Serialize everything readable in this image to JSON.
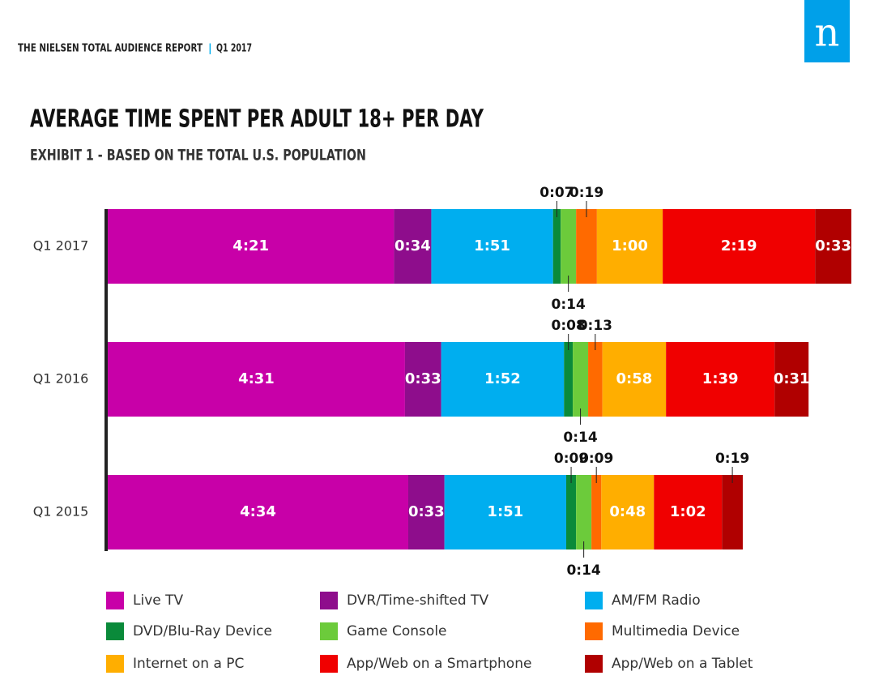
{
  "header": {
    "report": "THE NIELSEN TOTAL AUDIENCE REPORT",
    "period": "Q1 2017",
    "logo": "n"
  },
  "chart_data": {
    "type": "stacked-bar",
    "orientation": "horizontal",
    "title": "AVERAGE TIME SPENT PER ADULT 18+ PER DAY",
    "subtitle": "EXHIBIT 1 - BASED ON THE TOTAL U.S. POPULATION",
    "categories": [
      "Q1 2017",
      "Q1 2016",
      "Q1 2015"
    ],
    "series": [
      {
        "name": "Live TV",
        "color": "#c800a8",
        "values": [
          261,
          271,
          274
        ],
        "value_labels": [
          "4:21",
          "4:31",
          "4:34"
        ]
      },
      {
        "name": "DVR/Time-shifted TV",
        "color": "#8e0d8c",
        "values": [
          34,
          33,
          33
        ],
        "value_labels": [
          "0:34",
          "0:33",
          "0:33"
        ]
      },
      {
        "name": "AM/FM Radio",
        "color": "#00aeef",
        "values": [
          111,
          112,
          111
        ],
        "value_labels": [
          "1:51",
          "1:52",
          "1:51"
        ]
      },
      {
        "name": "DVD/Blu-Ray Device",
        "color": "#0a8a3a",
        "values": [
          7,
          8,
          9
        ],
        "value_labels": [
          "0:07",
          "0:08",
          "0:09"
        ]
      },
      {
        "name": "Game Console",
        "color": "#6ccb3b",
        "values": [
          14,
          14,
          14
        ],
        "value_labels": [
          "0:14",
          "0:14",
          "0:14"
        ]
      },
      {
        "name": "Multimedia Device",
        "color": "#ff6a00",
        "values": [
          19,
          13,
          9
        ],
        "value_labels": [
          "0:19",
          "0:13",
          "0:09"
        ]
      },
      {
        "name": "Internet on a PC",
        "color": "#ffae00",
        "values": [
          60,
          58,
          48
        ],
        "value_labels": [
          "1:00",
          "0:58",
          "0:48"
        ]
      },
      {
        "name": "App/Web on a Smartphone",
        "color": "#f00000",
        "values": [
          139,
          99,
          62
        ],
        "value_labels": [
          "2:19",
          "1:39",
          "1:02"
        ]
      },
      {
        "name": "App/Web on a Tablet",
        "color": "#b00000",
        "values": [
          33,
          31,
          19
        ],
        "value_labels": [
          "0:33",
          "0:31",
          "0:19"
        ]
      }
    ]
  }
}
